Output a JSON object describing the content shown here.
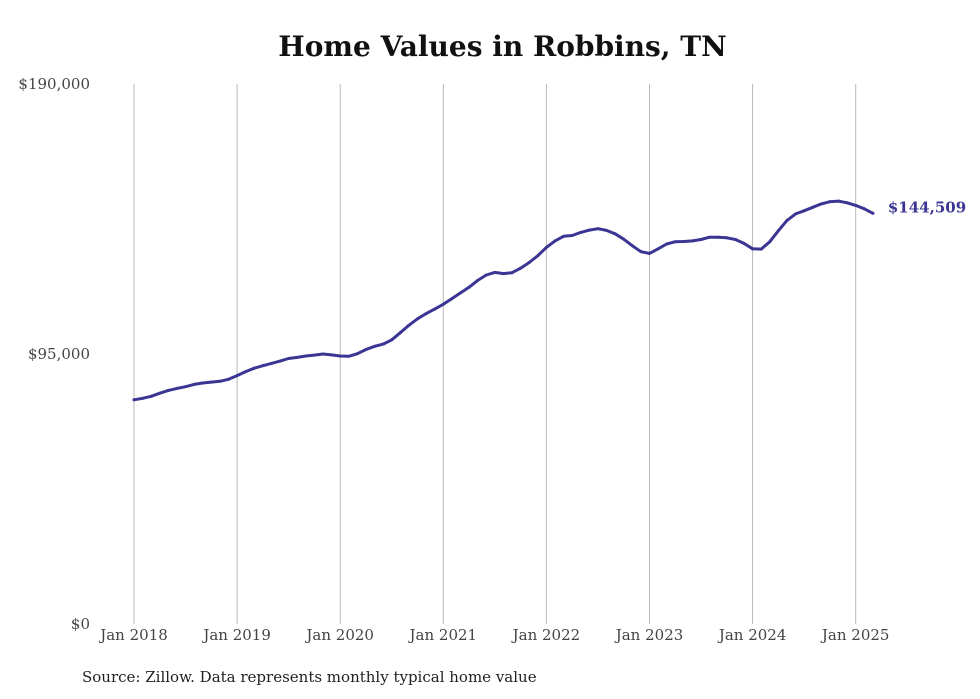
{
  "chart_data": {
    "type": "line",
    "title": "Home Values in Robbins, TN",
    "xlabel": "",
    "ylabel": "",
    "ylim": [
      0,
      190000
    ],
    "y_ticks": [
      "$190,000",
      "$95,000",
      "$0"
    ],
    "y_tick_values": [
      190000,
      95000,
      0
    ],
    "x_ticks": [
      "Jan 2018",
      "Jan 2019",
      "Jan 2020",
      "Jan 2021",
      "Jan 2022",
      "Jan 2023",
      "Jan 2024",
      "Jan 2025"
    ],
    "x_tick_dates": [
      "2018-01",
      "2019-01",
      "2020-01",
      "2021-01",
      "2022-01",
      "2023-01",
      "2024-01",
      "2025-01"
    ],
    "grid": "vertical at year ticks",
    "line_color": "#3b3594",
    "end_label": "$144,509",
    "series": [
      {
        "x": [
          "2018-01",
          "2018-02",
          "2018-03",
          "2018-04",
          "2018-05",
          "2018-06",
          "2018-07",
          "2018-08",
          "2018-09",
          "2018-10",
          "2018-11",
          "2018-12",
          "2019-01",
          "2019-02",
          "2019-03",
          "2019-04",
          "2019-05",
          "2019-06",
          "2019-07",
          "2019-08",
          "2019-09",
          "2019-10",
          "2019-11",
          "2019-12",
          "2020-01",
          "2020-02",
          "2020-03",
          "2020-04",
          "2020-05",
          "2020-06",
          "2020-07",
          "2020-08",
          "2020-09",
          "2020-10",
          "2020-11",
          "2020-12",
          "2021-01",
          "2021-02",
          "2021-03",
          "2021-04",
          "2021-05",
          "2021-06",
          "2021-07",
          "2021-08",
          "2021-09",
          "2021-10",
          "2021-11",
          "2021-12",
          "2022-01",
          "2022-02",
          "2022-03",
          "2022-04",
          "2022-05",
          "2022-06",
          "2022-07",
          "2022-08",
          "2022-09",
          "2022-10",
          "2022-11",
          "2022-12",
          "2023-01",
          "2023-02",
          "2023-03",
          "2023-04",
          "2023-05",
          "2023-06",
          "2023-07",
          "2023-08",
          "2023-09",
          "2023-10",
          "2023-11",
          "2023-12",
          "2024-01",
          "2024-02",
          "2024-03",
          "2024-04",
          "2024-05",
          "2024-06",
          "2024-07",
          "2024-08",
          "2024-09",
          "2024-10",
          "2024-11",
          "2024-12",
          "2025-01",
          "2025-02",
          "2025-03"
        ],
        "y": [
          78900,
          79400,
          80100,
          81200,
          82200,
          82900,
          83500,
          84300,
          84800,
          85100,
          85400,
          86100,
          87400,
          88800,
          90000,
          90900,
          91700,
          92500,
          93400,
          93800,
          94300,
          94600,
          95000,
          94700,
          94300,
          94200,
          95100,
          96600,
          97700,
          98500,
          100000,
          102500,
          105100,
          107400,
          109200,
          110800,
          112500,
          114500,
          116500,
          118500,
          120900,
          122800,
          123700,
          123300,
          123600,
          125200,
          127200,
          129600,
          132500,
          134800,
          136400,
          136700,
          137800,
          138600,
          139100,
          138500,
          137300,
          135400,
          133100,
          131000,
          130400,
          132000,
          133700,
          134500,
          134600,
          134800,
          135300,
          136100,
          136100,
          135900,
          135300,
          133900,
          132000,
          131900,
          134500,
          138400,
          142000,
          144300,
          145400,
          146600,
          147800,
          148600,
          148800,
          148200,
          147300,
          146100,
          144509
        ]
      }
    ]
  },
  "source": "Source: Zillow. Data represents monthly typical home value"
}
